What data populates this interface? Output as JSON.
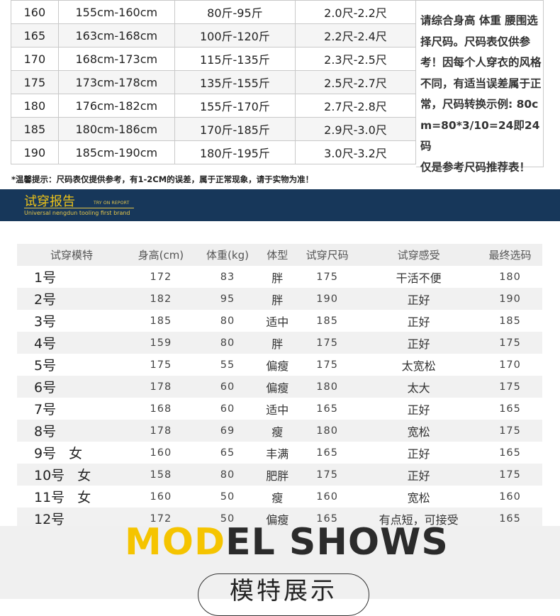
{
  "size_table": {
    "rows": [
      [
        "160",
        "155cm-160cm",
        "80斤-95斤",
        "2.0尺-2.2尺"
      ],
      [
        "165",
        "163cm-168cm",
        "100斤-120斤",
        "2.2尺-2.4尺"
      ],
      [
        "170",
        "168cm-173cm",
        "115斤-135斤",
        "2.3尺-2.5尺"
      ],
      [
        "175",
        "173cm-178cm",
        "135斤-155斤",
        "2.5尺-2.7尺"
      ],
      [
        "180",
        "176cm-182cm",
        "155斤-170斤",
        "2.7尺-2.8尺"
      ],
      [
        "185",
        "180cm-186cm",
        "170斤-185斤",
        "2.9尺-3.0尺"
      ],
      [
        "190",
        "185cm-190cm",
        "180斤-195斤",
        "3.0尺-3.2尺"
      ]
    ],
    "note": "请综合身高 体重 腰围选择尺码。尺码表仅供参考！因每个人穿衣的风格不同，有适当误差属于正常，尺码转换示例: 80cm=80*3/10=24即24码\n仅是参考尺码推荐表！"
  },
  "tip": "*温馨提示：尺码表仅提供参考，有1-2CM的误差，属于正常现象，请于实物为准！",
  "banner": {
    "title": "试穿报告",
    "tag": "TRY ON REPORT",
    "subtitle": "Universal nengdun tooling first brand"
  },
  "report": {
    "headers": [
      "试穿模特",
      "身高(cm)",
      "体重(kg)",
      "体型",
      "试穿尺码",
      "试穿感受",
      "最终选码"
    ],
    "rows": [
      {
        "model": "1号",
        "gender": "",
        "height": "172",
        "weight": "83",
        "body": "胖",
        "size": "175",
        "feel": "干活不便",
        "final": "180"
      },
      {
        "model": "2号",
        "gender": "",
        "height": "182",
        "weight": "95",
        "body": "胖",
        "size": "190",
        "feel": "正好",
        "final": "190"
      },
      {
        "model": "3号",
        "gender": "",
        "height": "185",
        "weight": "80",
        "body": "适中",
        "size": "185",
        "feel": "正好",
        "final": "185"
      },
      {
        "model": "4号",
        "gender": "",
        "height": "159",
        "weight": "80",
        "body": "胖",
        "size": "175",
        "feel": "正好",
        "final": "175"
      },
      {
        "model": "5号",
        "gender": "",
        "height": "175",
        "weight": "55",
        "body": "偏瘦",
        "size": "175",
        "feel": "太宽松",
        "final": "170"
      },
      {
        "model": "6号",
        "gender": "",
        "height": "178",
        "weight": "60",
        "body": "偏瘦",
        "size": "180",
        "feel": "太大",
        "final": "175"
      },
      {
        "model": "7号",
        "gender": "",
        "height": "168",
        "weight": "60",
        "body": "适中",
        "size": "165",
        "feel": "正好",
        "final": "165"
      },
      {
        "model": "8号",
        "gender": "",
        "height": "178",
        "weight": "69",
        "body": "瘦",
        "size": "180",
        "feel": "宽松",
        "final": "175"
      },
      {
        "model": "9号",
        "gender": "女",
        "height": "160",
        "weight": "65",
        "body": "丰满",
        "size": "165",
        "feel": "正好",
        "final": "165"
      },
      {
        "model": "10号",
        "gender": "女",
        "height": "158",
        "weight": "80",
        "body": "肥胖",
        "size": "175",
        "feel": "正好",
        "final": "175"
      },
      {
        "model": "11号",
        "gender": "女",
        "height": "160",
        "weight": "50",
        "body": "瘦",
        "size": "160",
        "feel": "宽松",
        "final": "160"
      },
      {
        "model": "12号",
        "gender": "",
        "height": "172",
        "weight": "50",
        "body": "偏瘦",
        "size": "165",
        "feel": "有点短，可接受",
        "final": "165"
      }
    ]
  },
  "shows": {
    "title_part1": "MOD",
    "title_part2": "EL SHOWS",
    "subtitle": "模特展示"
  }
}
